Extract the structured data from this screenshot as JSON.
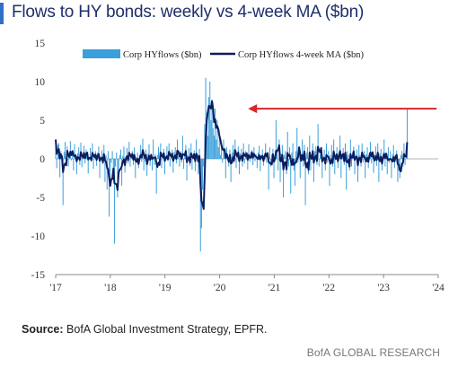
{
  "header": {
    "title": "Flows to HY bonds: weekly vs 4-week MA ($bn)",
    "accent_color": "#2f6fc7"
  },
  "footer": {
    "source_label": "Source:",
    "source_text": "BofA Global Investment Strategy, EPFR.",
    "brand": "BofA GLOBAL RESEARCH"
  },
  "chart_data": {
    "type": "bar",
    "title": "Flows to HY bonds: weekly vs 4-week MA ($bn)",
    "xlabel": "",
    "ylabel": "",
    "ylim": [
      -15,
      15
    ],
    "xlim": [
      2017.0,
      2024.0
    ],
    "yticks": [
      15,
      10,
      5,
      0,
      -5,
      -10,
      -15
    ],
    "xticks": [
      {
        "value": 2017,
        "label": "'17"
      },
      {
        "value": 2018,
        "label": "'18"
      },
      {
        "value": 2019,
        "label": "'19"
      },
      {
        "value": 2020,
        "label": "'20"
      },
      {
        "value": 2021,
        "label": "'21"
      },
      {
        "value": 2022,
        "label": "'22"
      },
      {
        "value": 2023,
        "label": "'23"
      },
      {
        "value": 2024,
        "label": "'24"
      }
    ],
    "legend_position": "top",
    "grid": false,
    "series": [
      {
        "name": "Corp HYflows ($bn)",
        "type": "bar",
        "color": "#3a9fdc",
        "x_start": 2017.0,
        "x_step": 0.0192,
        "values": [
          2.5,
          -1.2,
          1.8,
          2.0,
          -2.4,
          1.0,
          0.5,
          -6.0,
          0.9,
          2.2,
          -0.5,
          1.6,
          -1.0,
          0.8,
          2.3,
          -0.2,
          1.1,
          -1.5,
          1.9,
          0.3,
          -2.0,
          0.7,
          1.5,
          -0.8,
          2.1,
          -1.1,
          0.4,
          1.7,
          -0.6,
          1.2,
          0.9,
          -1.9,
          0.2,
          1.4,
          -0.4,
          2.0,
          -1.3,
          0.6,
          1.0,
          -0.9,
          0.8,
          1.6,
          -2.5,
          0.3,
          1.1,
          -0.7,
          1.8,
          -3.0,
          0.5,
          -4.0,
          1.0,
          -7.5,
          -3.5,
          -0.5,
          1.0,
          -2.0,
          -11.0,
          -1.0,
          0.8,
          -5.0,
          -2.0,
          0.5,
          1.2,
          -3.5,
          0.4,
          1.6,
          -1.8,
          0.2,
          1.4,
          -0.6,
          2.2,
          -1.0,
          0.3,
          1.0,
          -0.8,
          1.5,
          -2.5,
          0.2,
          0.8,
          -1.2,
          0.5,
          1.8,
          -0.4,
          2.6,
          -1.5,
          -0.3,
          1.2,
          -2.2,
          0.7,
          1.9,
          -0.9,
          0.4,
          -1.5,
          2.5,
          -0.8,
          0.6,
          -4.5,
          0.5,
          1.5,
          -0.7,
          2.0,
          -1.2,
          0.8,
          1.3,
          -2.0,
          0.4,
          1.6,
          -0.3,
          2.0,
          -1.0,
          0.5,
          1.2,
          -1.8,
          0.9,
          1.5,
          -0.6,
          2.5,
          0.3,
          -1.0,
          1.0,
          -0.5,
          3.0,
          -1.3,
          0.6,
          1.8,
          -2.8,
          0.4,
          1.4,
          -0.9,
          2.0,
          -1.4,
          0.7,
          1.1,
          -1.6,
          2.5,
          -0.3,
          -2.0,
          1.3,
          -12.0,
          -9.0,
          -4.0,
          -1.0,
          4.5,
          10.5,
          6.0,
          3.0,
          8.0,
          10.0,
          5.0,
          7.0,
          4.0,
          3.0,
          6.5,
          2.5,
          5.0,
          1.5,
          3.0,
          0.5,
          2.0,
          -0.5,
          2.5,
          1.0,
          -2.5,
          1.5,
          0.4,
          -1.0,
          1.2,
          -3.0,
          0.8,
          1.8,
          -0.5,
          2.5,
          -1.2,
          0.4,
          1.6,
          -2.0,
          0.7,
          1.3,
          -1.0,
          2.0,
          -0.6,
          1.0,
          0.5,
          -1.4,
          1.9,
          -0.4,
          0.8,
          1.1,
          -0.8,
          1.5,
          -0.3,
          0.6,
          -1.2,
          0.8,
          1.7,
          -1.6,
          0.3,
          1.2,
          -0.9,
          0.5,
          2.0,
          -0.5,
          0.9,
          -4.0,
          1.5,
          -1.0,
          0.6,
          1.3,
          -2.5,
          0.4,
          5.0,
          1.0,
          -1.5,
          2.5,
          -3.0,
          0.7,
          1.8,
          -5.0,
          0.5,
          1.0,
          -2.0,
          3.5,
          -1.0,
          1.5,
          -4.5,
          0.8,
          2.0,
          -1.5,
          -3.5,
          1.0,
          4.0,
          -0.5,
          1.5,
          -2.5,
          0.5,
          2.5,
          -1.0,
          1.8,
          -6.0,
          0.8,
          1.5,
          -2.0,
          3.0,
          -1.5,
          0.5,
          2.0,
          -3.0,
          1.0,
          1.6,
          -0.8,
          4.5,
          -1.0,
          0.6,
          1.5,
          -2.5,
          0.3,
          1.2,
          -1.5,
          2.0,
          -0.5,
          1.0,
          -3.5,
          0.5,
          1.8,
          -1.0,
          2.5,
          -2.0,
          0.4,
          1.5,
          -1.2,
          0.8,
          3.0,
          -2.5,
          0.6,
          1.4,
          -0.8,
          2.0,
          -4.0,
          1.0,
          0.5,
          -1.5,
          2.5,
          -1.0,
          0.8,
          1.6,
          -2.0,
          0.4,
          1.2,
          -3.0,
          1.8,
          0.5,
          -1.0,
          2.0,
          -0.5,
          1.0,
          -2.5,
          0.6,
          1.5,
          -1.2,
          0.8,
          2.2,
          -0.6,
          1.0,
          -1.8,
          0.5,
          1.6,
          -0.9,
          2.0,
          -3.0,
          0.7,
          1.3,
          -1.5,
          0.4,
          2.5,
          -1.0,
          0.8,
          -2.0,
          1.5,
          -0.5,
          1.0,
          -2.5,
          0.6,
          1.8,
          -1.2,
          0.3,
          1.1,
          -3.0,
          -1.5,
          -2.5,
          0.5,
          1.0,
          -1.0,
          2.0,
          -0.8,
          0.9,
          6.5
        ]
      },
      {
        "name": "Corp HYflows 4-week MA ($bn)",
        "type": "line",
        "color": "#0b1d5e",
        "smoothing": 4
      }
    ],
    "annotations": [
      {
        "type": "arrow",
        "color": "#d9262b",
        "from_x": 2023.97,
        "to_x": 2020.52,
        "y": 6.5
      }
    ]
  }
}
